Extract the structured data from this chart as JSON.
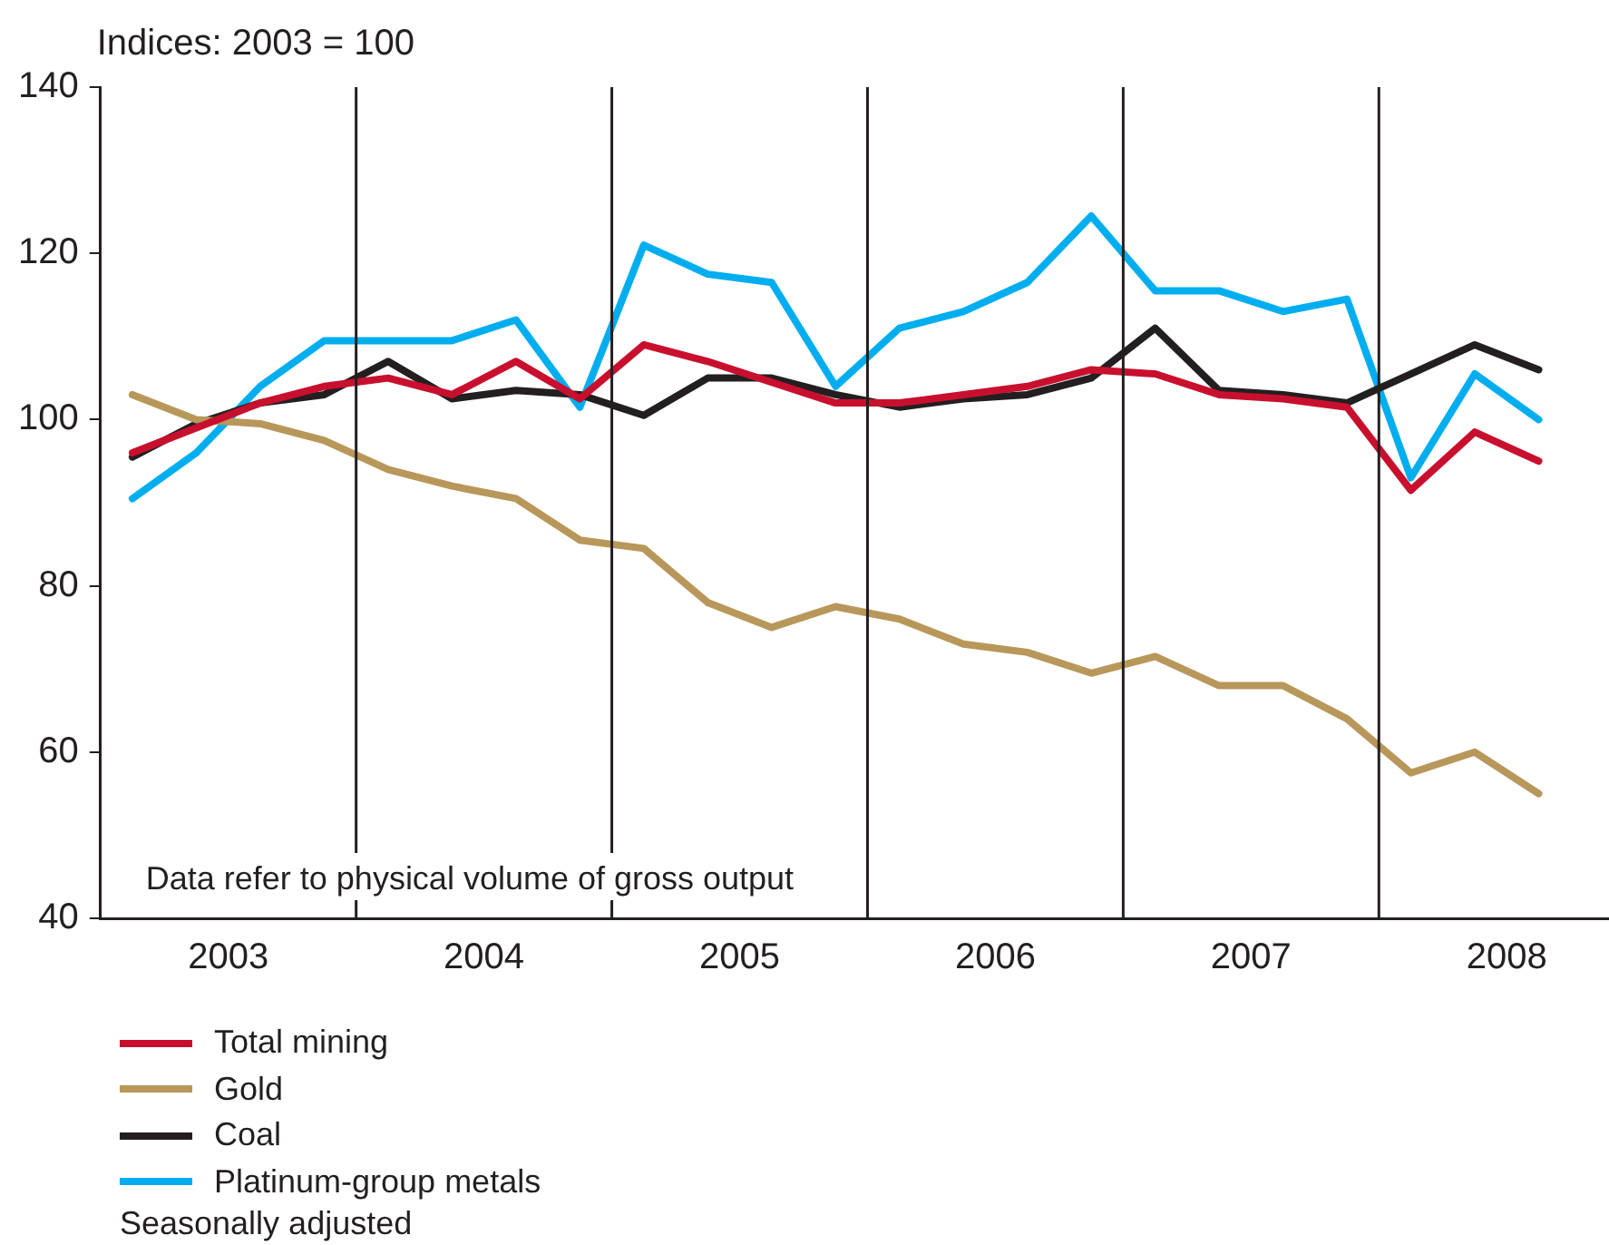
{
  "chart_data": {
    "type": "line",
    "ylabel": "Indices: 2003 = 100",
    "x": [
      2003.125,
      2003.375,
      2003.625,
      2003.875,
      2004.125,
      2004.375,
      2004.625,
      2004.875,
      2005.125,
      2005.375,
      2005.625,
      2005.875,
      2006.125,
      2006.375,
      2006.625,
      2006.875,
      2007.125,
      2007.375,
      2007.625,
      2007.875,
      2008.125,
      2008.375,
      2008.625
    ],
    "series": [
      {
        "name": "Total mining",
        "color": "#c8102e",
        "values": [
          96,
          99,
          102,
          104,
          105,
          103,
          107,
          102.5,
          109,
          107,
          104.5,
          102,
          102,
          103,
          104,
          106,
          105.5,
          103,
          102.5,
          101.5,
          91.5,
          98.5,
          95
        ]
      },
      {
        "name": "Gold",
        "color": "#b8975a",
        "values": [
          103,
          100,
          99.5,
          97.5,
          94,
          92,
          90.5,
          85.5,
          84.5,
          78,
          75,
          77.5,
          76,
          73,
          72,
          69.5,
          71.5,
          68,
          68,
          64,
          57.5,
          60,
          55
        ]
      },
      {
        "name": "Coal",
        "color": "#231f20",
        "values": [
          95.5,
          99.5,
          102,
          103,
          107,
          102.5,
          103.5,
          103,
          100.5,
          105,
          105,
          103,
          101.5,
          102.5,
          103,
          105,
          111,
          103.5,
          103,
          102,
          105.5,
          109,
          106
        ]
      },
      {
        "name": "Platinum-group metals",
        "color": "#00aeef",
        "values": [
          90.5,
          96,
          104,
          109.5,
          109.5,
          109.5,
          112,
          101.5,
          121,
          117.5,
          116.5,
          104,
          111,
          113,
          116.5,
          124.5,
          115.5,
          115.5,
          113,
          114.5,
          93,
          105.5,
          100
        ]
      }
    ],
    "xlim": [
      2003,
      2008.9
    ],
    "xticks": [
      {
        "value": 2003.5,
        "label": "2003"
      },
      {
        "value": 2004.5,
        "label": "2004"
      },
      {
        "value": 2005.5,
        "label": "2005"
      },
      {
        "value": 2006.5,
        "label": "2006"
      },
      {
        "value": 2007.5,
        "label": "2007"
      },
      {
        "value": 2008.5,
        "label": "2008"
      }
    ],
    "ylim": [
      40,
      140
    ],
    "yticks": [
      40,
      60,
      80,
      100,
      120,
      140
    ],
    "ref_lines": [
      {
        "axis": "x",
        "value": 2004,
        "color": "#231f20"
      },
      {
        "axis": "x",
        "value": 2005,
        "color": "#231f20"
      },
      {
        "axis": "x",
        "value": 2006,
        "color": "#231f20"
      },
      {
        "axis": "x",
        "value": 2007,
        "color": "#231f20"
      },
      {
        "axis": "x",
        "value": 2008,
        "color": "#231f20"
      }
    ],
    "grid": false,
    "legend": "bottom",
    "marker": "none",
    "line_style": "solid",
    "annotations": [
      "Data refer to physical volume of gross output",
      "Seasonally adjusted"
    ]
  }
}
